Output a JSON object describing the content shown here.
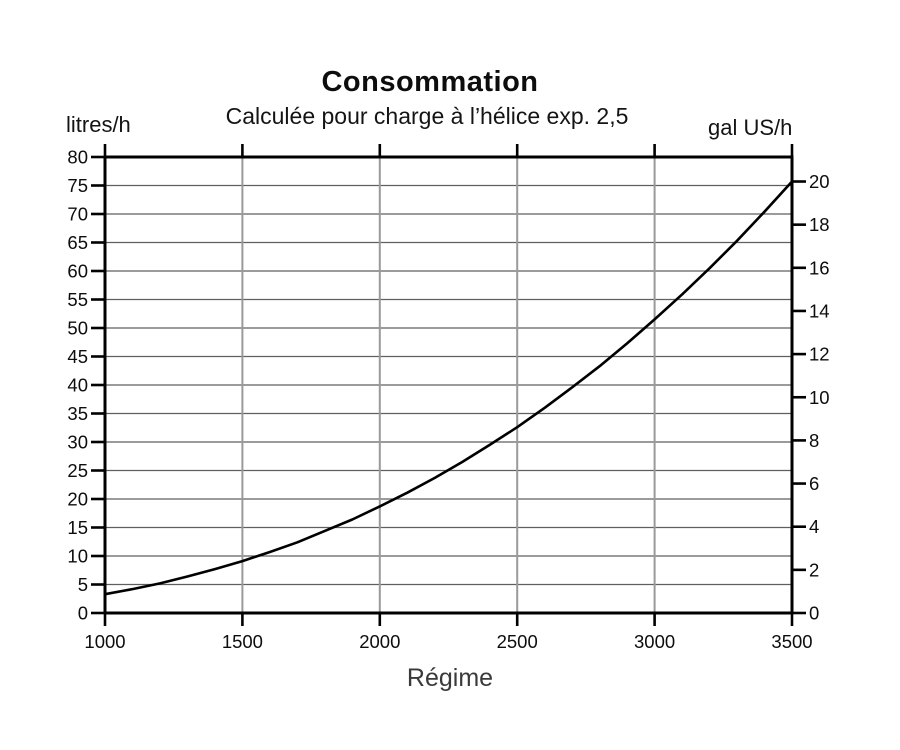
{
  "chart_data": {
    "type": "line",
    "title": "Consommation",
    "subtitle": "Calculée pour charge à l’hélice exp. 2,5",
    "xlabel": "Régime",
    "ylabel_left": "litres/h",
    "ylabel_right": "gal US/h",
    "xlim": [
      1000,
      3500
    ],
    "ylim_left": [
      0,
      80
    ],
    "ylim_right": [
      0,
      20
    ],
    "x_ticks": [
      1000,
      1500,
      2000,
      2500,
      3000,
      3500
    ],
    "y_left_ticks": [
      0,
      5,
      10,
      15,
      20,
      25,
      30,
      35,
      40,
      45,
      50,
      55,
      60,
      65,
      70,
      75,
      80
    ],
    "y_right_ticks": [
      0,
      2,
      4,
      6,
      8,
      10,
      12,
      14,
      16,
      18,
      20
    ],
    "litres_per_gal_us": 3.785,
    "grid": {
      "horizontal_every_litres": 5,
      "vertical_every_rpm": 500,
      "grid_on": true
    },
    "legend": "none",
    "series": [
      {
        "name": "consommation",
        "x_rpm": [
          1000,
          1100,
          1200,
          1300,
          1400,
          1500,
          1600,
          1700,
          1800,
          1900,
          2000,
          2100,
          2200,
          2300,
          2400,
          2500,
          2600,
          2700,
          2800,
          2900,
          3000,
          3100,
          3200,
          3300,
          3400,
          3500
        ],
        "y_litres_per_h": [
          3.3,
          4.2,
          5.2,
          6.4,
          7.7,
          9.1,
          10.7,
          12.4,
          14.4,
          16.4,
          18.7,
          21.1,
          23.7,
          26.5,
          29.5,
          32.6,
          36.0,
          39.6,
          43.3,
          47.3,
          51.5,
          55.9,
          60.5,
          65.3,
          70.4,
          75.7
        ]
      }
    ],
    "colors": {
      "curve": "#000000",
      "frame": "#000000",
      "tick": "#000000",
      "grid_horizontal": "#5f5f5f",
      "grid_vertical": "#9a9a9a",
      "text": "#0d0d0d",
      "xlabel_text": "#3a3a3a",
      "background": "#ffffff"
    }
  }
}
